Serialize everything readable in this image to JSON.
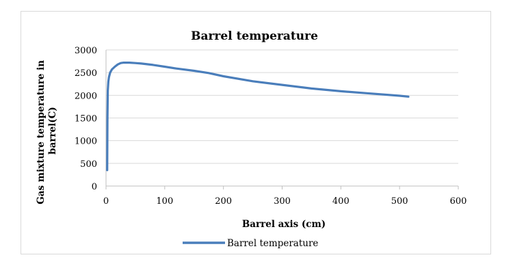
{
  "chart_data": {
    "type": "line",
    "title": "Barrel temperature",
    "xlabel": "Barrel axis (cm)",
    "ylabel_lines": [
      "Gas mixture temperature in",
      "barrel(C)"
    ],
    "xlim": [
      0,
      600
    ],
    "ylim": [
      0,
      3000
    ],
    "x_ticks": [
      0,
      100,
      200,
      300,
      400,
      500,
      600
    ],
    "y_ticks": [
      0,
      500,
      1000,
      1500,
      2000,
      2500,
      3000
    ],
    "grid": "horizontal",
    "legend_position": "bottom",
    "series": [
      {
        "name": "Barrel temperature",
        "color": "#4a7ebb",
        "x": [
          2,
          2.5,
          3,
          4,
          5,
          7,
          10,
          15,
          20,
          25,
          30,
          40,
          50,
          60,
          80,
          100,
          120,
          150,
          175,
          200,
          250,
          300,
          350,
          400,
          450,
          500,
          515
        ],
        "y": [
          350,
          1500,
          2100,
          2300,
          2400,
          2500,
          2570,
          2630,
          2680,
          2710,
          2720,
          2720,
          2710,
          2700,
          2670,
          2630,
          2590,
          2540,
          2490,
          2420,
          2310,
          2230,
          2150,
          2090,
          2040,
          1990,
          1970
        ]
      }
    ]
  }
}
